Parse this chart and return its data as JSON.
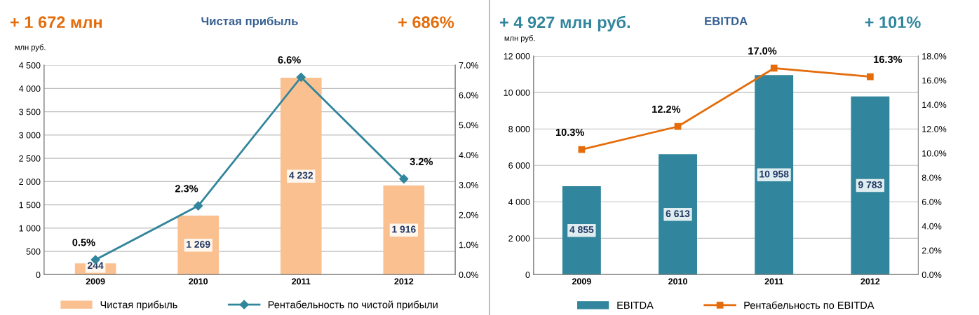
{
  "chart_data": [
    {
      "type": "bar",
      "title": "Чистая прибыль",
      "ylabel": "млн руб.",
      "annotations": [
        "+ 1 672 млн",
        "+ 686%"
      ],
      "categories": [
        "2009",
        "2010",
        "2011",
        "2012"
      ],
      "series": [
        {
          "name": "Чистая прибыль",
          "color": "#fac090",
          "values": [
            244,
            1269,
            4232,
            1916
          ],
          "value_labels": [
            "244",
            "1 269",
            "4 232",
            "1 916"
          ]
        },
        {
          "name": "Рентабельность по чистой прибыли",
          "type": "line",
          "axis": "y2",
          "color": "#31859c",
          "marker": "diamond",
          "values": [
            0.5,
            2.3,
            6.6,
            3.2
          ],
          "value_labels": [
            "0.5%",
            "2.3%",
            "6.6%",
            "3.2%"
          ]
        }
      ],
      "ylim": [
        0,
        4500
      ],
      "yticks": [
        0,
        500,
        {
          "value": 1000,
          "label": "1 000"
        },
        {
          "value": 1500,
          "label": "1 500"
        },
        {
          "value": 2000,
          "label": "2 000"
        },
        {
          "value": 2500,
          "label": "2 500"
        },
        {
          "value": 3000,
          "label": "3 000"
        },
        {
          "value": 3500,
          "label": "3 500"
        },
        {
          "value": 4000,
          "label": "4 000"
        },
        {
          "value": 4500,
          "label": "4 500"
        }
      ],
      "y2lim": [
        0,
        7
      ],
      "y2ticks": [
        {
          "value": 0,
          "label": "0.0%"
        },
        {
          "value": 1,
          "label": "1.0%"
        },
        {
          "value": 2,
          "label": "2.0%"
        },
        {
          "value": 3,
          "label": "3.0%"
        },
        {
          "value": 4,
          "label": "4.0%"
        },
        {
          "value": 5,
          "label": "5.0%"
        },
        {
          "value": 6,
          "label": "6.0%"
        },
        {
          "value": 7,
          "label": "7.0%"
        }
      ],
      "grid": "y",
      "legend": "bottom"
    },
    {
      "type": "bar",
      "title": "EBITDA",
      "ylabel": "млн руб.",
      "annotations": [
        "+ 4 927 млн руб.",
        "+ 101%"
      ],
      "categories": [
        "2009",
        "2010",
        "2011",
        "2012"
      ],
      "series": [
        {
          "name": "EBITDA",
          "color": "#31859c",
          "values": [
            4855,
            6613,
            10958,
            9783
          ],
          "value_labels": [
            "4 855",
            "6 613",
            "10 958",
            "9 783"
          ]
        },
        {
          "name": "Рентабельность по EBITDA",
          "type": "line",
          "axis": "y2",
          "color": "#e46c0a",
          "marker": "square",
          "values": [
            10.3,
            12.2,
            17.0,
            16.3
          ],
          "value_labels": [
            "10.3%",
            "12.2%",
            "17.0%",
            "16.3%"
          ]
        }
      ],
      "ylim": [
        0,
        12000
      ],
      "yticks": [
        0,
        {
          "value": 2000,
          "label": "2 000"
        },
        {
          "value": 4000,
          "label": "4 000"
        },
        {
          "value": 6000,
          "label": "6 000"
        },
        {
          "value": 8000,
          "label": "8 000"
        },
        {
          "value": 10000,
          "label": "10 000"
        },
        {
          "value": 12000,
          "label": "12 000"
        }
      ],
      "y2lim": [
        0,
        18
      ],
      "y2ticks": [
        {
          "value": 0,
          "label": "0.0%"
        },
        {
          "value": 2,
          "label": "2.0%"
        },
        {
          "value": 4,
          "label": "4.0%"
        },
        {
          "value": 6,
          "label": "6.0%"
        },
        {
          "value": 8,
          "label": "8.0%"
        },
        {
          "value": 10,
          "label": "10.0%"
        },
        {
          "value": 12,
          "label": "12.0%"
        },
        {
          "value": 14,
          "label": "14.0%"
        },
        {
          "value": 16,
          "label": "16.0%"
        },
        {
          "value": 18,
          "label": "18.0%"
        }
      ],
      "grid": "y",
      "legend": "bottom"
    }
  ]
}
